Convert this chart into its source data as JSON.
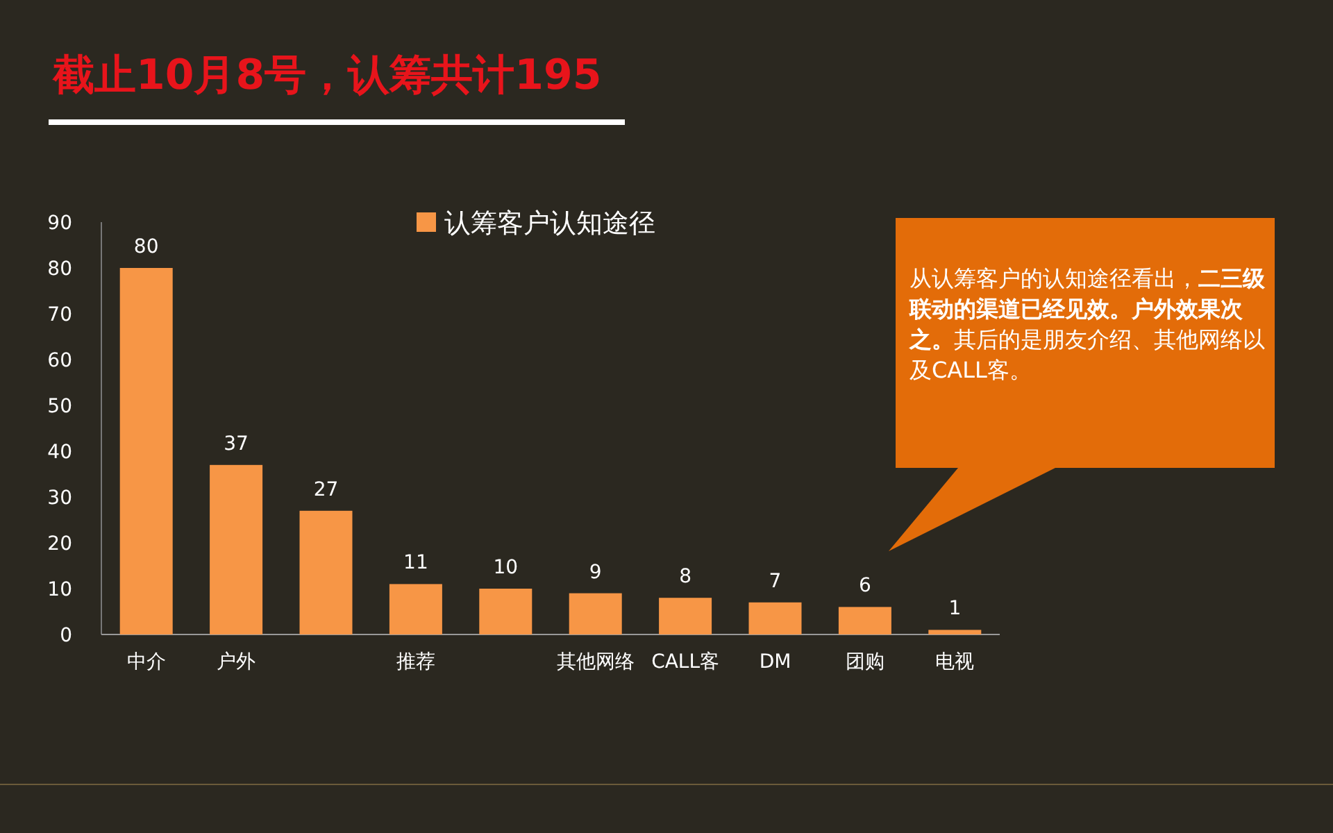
{
  "chart_data": {
    "type": "bar",
    "title": "截止10月8号，认筹共计195",
    "categories": [
      "中介",
      "户外",
      null,
      "推荐",
      null,
      "其他网络",
      "CALL客",
      "DM",
      "团购",
      "电视"
    ],
    "series": [
      {
        "name": "认筹客户认知途径",
        "color": "#f79646",
        "values": [
          80,
          37,
          27,
          11,
          10,
          9,
          8,
          7,
          6,
          1
        ]
      }
    ],
    "ylim": [
      0,
      90
    ],
    "yticks": [
      0,
      10,
      20,
      30,
      40,
      50,
      60,
      70,
      80,
      90
    ],
    "legend": "top",
    "data_labels": true,
    "grid": false,
    "annotations": [
      "从认筹客户的认知途径看出，**二三级联动的渠道已经见效。户外效果次之。**其后的是朋友介绍、其他网络以及CALL客。"
    ]
  }
}
